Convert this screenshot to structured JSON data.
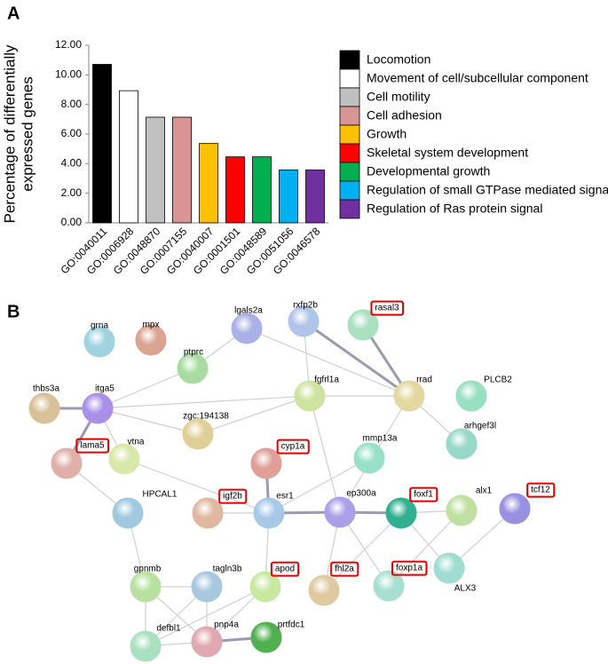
{
  "panel_labels": [
    "A",
    "B"
  ],
  "chart_data": {
    "type": "bar",
    "ylabel": [
      "Percentage of differentially",
      "expressed genes"
    ],
    "categories": [
      "GO:0040011",
      "GO:0006928",
      "GO:0048870",
      "GO:0007155",
      "GO:0040007",
      "GO:0001501",
      "GO:0048589",
      "GO:0051056",
      "GO:0046578"
    ],
    "values": [
      10.71,
      8.93,
      7.14,
      7.14,
      5.36,
      4.46,
      4.46,
      3.57,
      3.57
    ],
    "colors": [
      "#000000",
      "#ffffff",
      "#c0c0c0",
      "#d99594",
      "#ffc000",
      "#ff0000",
      "#00b050",
      "#00b0f0",
      "#7030a0"
    ],
    "legend": [
      "Locomotion",
      "Movement of cell/subcellular component",
      "Cell motility",
      "Cell adhesion",
      "Growth",
      "Skeletal system development",
      "Developmental growth",
      "Regulation of small GTPase mediated signal",
      "Regulation of Ras protein signal"
    ],
    "ylim": [
      0,
      12
    ],
    "yticks": [
      {
        "value": 0,
        "label": "0.00"
      },
      {
        "value": 2,
        "label": "2.00"
      },
      {
        "value": 4,
        "label": "4.00"
      },
      {
        "value": 6,
        "label": "6.00"
      },
      {
        "value": 8,
        "label": "8.00"
      },
      {
        "value": 10,
        "label": "10.00"
      },
      {
        "value": 12,
        "label": "12.00"
      }
    ],
    "grid": false
  },
  "network": {
    "nodes": [
      {
        "label": "grna",
        "color": "#9fd3e0"
      },
      {
        "label": "mpx",
        "color": "#dba391"
      },
      {
        "label": "ptprc",
        "color": "#a8dca0"
      },
      {
        "label": "lgals2a",
        "color": "#aab0e8"
      },
      {
        "label": "rxfp2b",
        "color": "#b0c4ea"
      },
      {
        "label": "rasal3",
        "color": "#a8e0c0",
        "highlight": true
      },
      {
        "label": "fgfrl1a",
        "color": "#cfe3a0"
      },
      {
        "label": "rrad",
        "color": "#e3d8a0"
      },
      {
        "label": "PLCB2",
        "color": "#98e0c0"
      },
      {
        "label": "thbs3a",
        "color": "#d8c098"
      },
      {
        "label": "itga5",
        "color": "#a890e8"
      },
      {
        "label": "zgc:194138",
        "color": "#e0d098"
      },
      {
        "label": "vtna",
        "color": "#d8e8a8"
      },
      {
        "label": "lama5",
        "color": "#e0b0a8",
        "highlight": true
      },
      {
        "label": "cyp1a",
        "color": "#e0a098",
        "highlight": true
      },
      {
        "label": "mmp13a",
        "color": "#98e0c8"
      },
      {
        "label": "arhgef3l",
        "color": "#98d8c8"
      },
      {
        "label": "HPCAL1",
        "color": "#a0c8e0"
      },
      {
        "label": "igf2b",
        "color": "#e0b8a0",
        "highlight": true
      },
      {
        "label": "esr1",
        "color": "#a8c8e8"
      },
      {
        "label": "ep300a",
        "color": "#a8a0e8"
      },
      {
        "label": "foxf1",
        "color": "#30b090",
        "highlight": true
      },
      {
        "label": "alx1",
        "color": "#c0e0a0"
      },
      {
        "label": "tcf12",
        "color": "#9890e0",
        "highlight": true
      },
      {
        "label": "gpnmb",
        "color": "#b8e0a0"
      },
      {
        "label": "tagln3b",
        "color": "#a8c8e0"
      },
      {
        "label": "apod",
        "color": "#c8e8a0",
        "highlight": true
      },
      {
        "label": "fhl2a",
        "color": "#e0c8a0",
        "highlight": true
      },
      {
        "label": "foxp1a",
        "color": "#a8e0d0",
        "highlight": true
      },
      {
        "label": "ALX3",
        "color": "#a0dcd0"
      },
      {
        "label": "defbl1",
        "color": "#a8e0c0"
      },
      {
        "label": "pnp4a",
        "color": "#e0a8b0"
      },
      {
        "label": "prtfdc1",
        "color": "#50b050"
      }
    ],
    "edges": [
      {
        "from": "thbs3a",
        "to": "itga5",
        "thick": true
      },
      {
        "from": "itga5",
        "to": "lama5",
        "thick": true
      },
      {
        "from": "lama5",
        "to": "HPCAL1"
      },
      {
        "from": "itga5",
        "to": "ptprc"
      },
      {
        "from": "itga5",
        "to": "vtna"
      },
      {
        "from": "itga5",
        "to": "fgfrl1a"
      },
      {
        "from": "itga5",
        "to": "zgc:194138"
      },
      {
        "from": "vtna",
        "to": "esr1"
      },
      {
        "from": "ptprc",
        "to": "lgals2a"
      },
      {
        "from": "lgals2a",
        "to": "rrad"
      },
      {
        "from": "rxfp2b",
        "to": "rrad",
        "thick": true
      },
      {
        "from": "rasal3",
        "to": "rrad",
        "thick": true
      },
      {
        "from": "rxfp2b",
        "to": "fgfrl1a"
      },
      {
        "from": "fgfrl1a",
        "to": "rrad"
      },
      {
        "from": "zgc:194138",
        "to": "fgfrl1a"
      },
      {
        "from": "fgfrl1a",
        "to": "ep300a"
      },
      {
        "from": "rrad",
        "to": "arhgef3l"
      },
      {
        "from": "rrad",
        "to": "ep300a"
      },
      {
        "from": "mmp13a",
        "to": "esr1"
      },
      {
        "from": "cyp1a",
        "to": "esr1",
        "thick": true
      },
      {
        "from": "igf2b",
        "to": "esr1"
      },
      {
        "from": "esr1",
        "to": "ep300a",
        "thick": true
      },
      {
        "from": "ep300a",
        "to": "foxf1",
        "thick": true
      },
      {
        "from": "foxf1",
        "to": "alx1"
      },
      {
        "from": "foxf1",
        "to": "ALX3"
      },
      {
        "from": "alx1",
        "to": "foxp1a"
      },
      {
        "from": "tcf12",
        "to": "ALX3"
      },
      {
        "from": "esr1",
        "to": "apod"
      },
      {
        "from": "ep300a",
        "to": "fhl2a"
      },
      {
        "from": "ep300a",
        "to": "foxp1a"
      },
      {
        "from": "fhl2a",
        "to": "foxf1"
      },
      {
        "from": "HPCAL1",
        "to": "gpnmb"
      },
      {
        "from": "gpnmb",
        "to": "tagln3b"
      },
      {
        "from": "gpnmb",
        "to": "defbl1"
      },
      {
        "from": "gpnmb",
        "to": "pnp4a"
      },
      {
        "from": "tagln3b",
        "to": "pnp4a"
      },
      {
        "from": "tagln3b",
        "to": "defbl1"
      },
      {
        "from": "apod",
        "to": "defbl1"
      },
      {
        "from": "apod",
        "to": "pnp4a"
      },
      {
        "from": "pnp4a",
        "to": "prtfdc1",
        "thick": true
      },
      {
        "from": "defbl1",
        "to": "pnp4a"
      }
    ]
  }
}
